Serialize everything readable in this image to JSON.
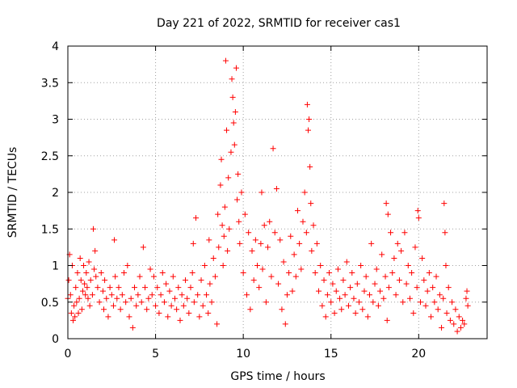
{
  "chart_data": {
    "type": "scatter",
    "title": "Day 221 of 2022, SRMTID for receiver cas1",
    "xlabel": "GPS time / hours",
    "ylabel": "SRMTID / TECUs",
    "xlim": [
      0,
      23.9
    ],
    "ylim": [
      0,
      4
    ],
    "grid": true,
    "marker": "plus",
    "color": "#ff0000",
    "xticks": [
      0,
      5,
      10,
      15,
      20
    ],
    "xtick_labels": [
      "0",
      "5",
      "10",
      "15",
      "20"
    ],
    "yticks": [
      0,
      0.5,
      1,
      1.5,
      2,
      2.5,
      3,
      3.5,
      4
    ],
    "ytick_labels": [
      "0",
      "0.5",
      "1",
      "1.5",
      "2",
      "2.5",
      "3",
      "3.5",
      "4"
    ],
    "series": [
      {
        "name": "SRMTID",
        "points": [
          [
            0.0,
            0.55
          ],
          [
            0.05,
            0.8
          ],
          [
            0.1,
            1.15
          ],
          [
            0.15,
            0.6
          ],
          [
            0.2,
            0.35
          ],
          [
            0.25,
            1.0
          ],
          [
            0.3,
            0.25
          ],
          [
            0.35,
            0.45
          ],
          [
            0.4,
            0.3
          ],
          [
            0.45,
            0.7
          ],
          [
            0.5,
            0.5
          ],
          [
            0.55,
            0.9
          ],
          [
            0.6,
            0.35
          ],
          [
            0.65,
            0.55
          ],
          [
            0.7,
            1.1
          ],
          [
            0.75,
            0.8
          ],
          [
            0.8,
            0.4
          ],
          [
            0.85,
            0.65
          ],
          [
            0.9,
            1.0
          ],
          [
            0.95,
            0.75
          ],
          [
            1.0,
            0.6
          ],
          [
            1.05,
            0.9
          ],
          [
            1.1,
            0.7
          ],
          [
            1.15,
            0.55
          ],
          [
            1.2,
            1.05
          ],
          [
            1.25,
            0.45
          ],
          [
            1.3,
            0.8
          ],
          [
            1.4,
            0.6
          ],
          [
            1.45,
            1.5
          ],
          [
            1.5,
            0.95
          ],
          [
            1.55,
            1.2
          ],
          [
            1.6,
            0.85
          ],
          [
            1.7,
            0.7
          ],
          [
            1.8,
            0.5
          ],
          [
            1.9,
            0.9
          ],
          [
            2.0,
            0.65
          ],
          [
            2.05,
            0.4
          ],
          [
            2.1,
            0.8
          ],
          [
            2.2,
            0.55
          ],
          [
            2.3,
            0.3
          ],
          [
            2.4,
            0.7
          ],
          [
            2.5,
            0.6
          ],
          [
            2.6,
            0.45
          ],
          [
            2.65,
            1.35
          ],
          [
            2.7,
            0.85
          ],
          [
            2.8,
            0.55
          ],
          [
            2.9,
            0.7
          ],
          [
            3.0,
            0.4
          ],
          [
            3.1,
            0.6
          ],
          [
            3.2,
            0.9
          ],
          [
            3.3,
            0.5
          ],
          [
            3.4,
            1.0
          ],
          [
            3.5,
            0.3
          ],
          [
            3.6,
            0.55
          ],
          [
            3.7,
            0.15
          ],
          [
            3.8,
            0.7
          ],
          [
            3.9,
            0.45
          ],
          [
            4.0,
            0.6
          ],
          [
            4.1,
            0.85
          ],
          [
            4.2,
            0.5
          ],
          [
            4.3,
            1.25
          ],
          [
            4.4,
            0.7
          ],
          [
            4.5,
            0.4
          ],
          [
            4.6,
            0.55
          ],
          [
            4.7,
            0.95
          ],
          [
            4.8,
            0.6
          ],
          [
            4.9,
            0.85
          ],
          [
            5.0,
            0.45
          ],
          [
            5.1,
            0.7
          ],
          [
            5.2,
            0.35
          ],
          [
            5.3,
            0.6
          ],
          [
            5.4,
            0.9
          ],
          [
            5.5,
            0.5
          ],
          [
            5.6,
            0.75
          ],
          [
            5.7,
            0.3
          ],
          [
            5.8,
            0.65
          ],
          [
            5.9,
            0.45
          ],
          [
            6.0,
            0.85
          ],
          [
            6.1,
            0.55
          ],
          [
            6.2,
            0.4
          ],
          [
            6.3,
            0.7
          ],
          [
            6.4,
            0.25
          ],
          [
            6.5,
            0.6
          ],
          [
            6.6,
            0.45
          ],
          [
            6.7,
            0.8
          ],
          [
            6.8,
            0.55
          ],
          [
            6.9,
            0.35
          ],
          [
            7.0,
            0.7
          ],
          [
            7.1,
            0.9
          ],
          [
            7.15,
            1.3
          ],
          [
            7.2,
            0.5
          ],
          [
            7.3,
            1.65
          ],
          [
            7.4,
            0.6
          ],
          [
            7.5,
            0.3
          ],
          [
            7.6,
            0.8
          ],
          [
            7.7,
            0.45
          ],
          [
            7.8,
            1.0
          ],
          [
            7.9,
            0.6
          ],
          [
            8.0,
            0.35
          ],
          [
            8.05,
            1.35
          ],
          [
            8.1,
            0.75
          ],
          [
            8.2,
            0.5
          ],
          [
            8.3,
            1.1
          ],
          [
            8.4,
            0.85
          ],
          [
            8.5,
            0.2
          ],
          [
            8.55,
            1.7
          ],
          [
            8.6,
            1.25
          ],
          [
            8.7,
            2.1
          ],
          [
            8.75,
            2.45
          ],
          [
            8.8,
            1.55
          ],
          [
            8.85,
            1.0
          ],
          [
            8.9,
            1.4
          ],
          [
            8.95,
            1.8
          ],
          [
            9.0,
            3.8
          ],
          [
            9.05,
            2.85
          ],
          [
            9.1,
            1.2
          ],
          [
            9.15,
            2.2
          ],
          [
            9.2,
            1.5
          ],
          [
            9.3,
            2.55
          ],
          [
            9.35,
            3.55
          ],
          [
            9.4,
            3.3
          ],
          [
            9.45,
            2.95
          ],
          [
            9.5,
            2.65
          ],
          [
            9.55,
            3.1
          ],
          [
            9.6,
            3.7
          ],
          [
            9.65,
            1.9
          ],
          [
            9.7,
            2.25
          ],
          [
            9.75,
            1.6
          ],
          [
            9.8,
            1.3
          ],
          [
            9.9,
            2.0
          ],
          [
            10.0,
            0.9
          ],
          [
            10.1,
            1.7
          ],
          [
            10.2,
            0.6
          ],
          [
            10.3,
            1.45
          ],
          [
            10.4,
            0.4
          ],
          [
            10.5,
            1.2
          ],
          [
            10.6,
            0.8
          ],
          [
            10.7,
            1.35
          ],
          [
            10.8,
            1.0
          ],
          [
            10.9,
            0.7
          ],
          [
            11.0,
            1.3
          ],
          [
            11.05,
            2.0
          ],
          [
            11.1,
            0.95
          ],
          [
            11.2,
            1.55
          ],
          [
            11.3,
            0.5
          ],
          [
            11.4,
            1.25
          ],
          [
            11.5,
            1.6
          ],
          [
            11.6,
            0.85
          ],
          [
            11.7,
            2.6
          ],
          [
            11.8,
            1.45
          ],
          [
            11.9,
            2.05
          ],
          [
            12.0,
            0.75
          ],
          [
            12.1,
            1.35
          ],
          [
            12.2,
            0.4
          ],
          [
            12.3,
            1.05
          ],
          [
            12.4,
            0.2
          ],
          [
            12.5,
            0.6
          ],
          [
            12.6,
            0.9
          ],
          [
            12.7,
            1.4
          ],
          [
            12.8,
            0.65
          ],
          [
            12.9,
            1.15
          ],
          [
            13.0,
            0.85
          ],
          [
            13.1,
            1.75
          ],
          [
            13.2,
            1.3
          ],
          [
            13.3,
            0.95
          ],
          [
            13.4,
            1.6
          ],
          [
            13.5,
            2.0
          ],
          [
            13.6,
            1.45
          ],
          [
            13.65,
            3.2
          ],
          [
            13.7,
            2.85
          ],
          [
            13.75,
            3.0
          ],
          [
            13.8,
            2.35
          ],
          [
            13.85,
            1.85
          ],
          [
            13.9,
            1.2
          ],
          [
            14.0,
            1.55
          ],
          [
            14.1,
            0.9
          ],
          [
            14.2,
            1.3
          ],
          [
            14.3,
            0.65
          ],
          [
            14.4,
            1.0
          ],
          [
            14.5,
            0.45
          ],
          [
            14.6,
            0.8
          ],
          [
            14.7,
            0.3
          ],
          [
            14.8,
            0.6
          ],
          [
            14.9,
            0.9
          ],
          [
            15.0,
            0.5
          ],
          [
            15.1,
            0.75
          ],
          [
            15.2,
            0.35
          ],
          [
            15.3,
            0.65
          ],
          [
            15.4,
            0.95
          ],
          [
            15.5,
            0.55
          ],
          [
            15.6,
            0.4
          ],
          [
            15.7,
            0.8
          ],
          [
            15.8,
            0.6
          ],
          [
            15.9,
            1.05
          ],
          [
            16.0,
            0.45
          ],
          [
            16.1,
            0.7
          ],
          [
            16.2,
            0.9
          ],
          [
            16.3,
            0.55
          ],
          [
            16.4,
            0.35
          ],
          [
            16.5,
            0.75
          ],
          [
            16.6,
            0.5
          ],
          [
            16.7,
            1.0
          ],
          [
            16.8,
            0.4
          ],
          [
            16.9,
            0.65
          ],
          [
            17.0,
            0.85
          ],
          [
            17.1,
            0.3
          ],
          [
            17.2,
            0.6
          ],
          [
            17.3,
            1.3
          ],
          [
            17.4,
            0.5
          ],
          [
            17.5,
            0.75
          ],
          [
            17.6,
            0.95
          ],
          [
            17.7,
            0.45
          ],
          [
            17.8,
            0.65
          ],
          [
            17.9,
            1.15
          ],
          [
            18.0,
            0.55
          ],
          [
            18.1,
            0.85
          ],
          [
            18.15,
            1.85
          ],
          [
            18.2,
            0.25
          ],
          [
            18.25,
            1.7
          ],
          [
            18.3,
            0.7
          ],
          [
            18.4,
            1.45
          ],
          [
            18.5,
            0.9
          ],
          [
            18.6,
            1.1
          ],
          [
            18.7,
            0.6
          ],
          [
            18.8,
            1.3
          ],
          [
            18.9,
            0.8
          ],
          [
            19.0,
            1.2
          ],
          [
            19.1,
            0.5
          ],
          [
            19.2,
            1.45
          ],
          [
            19.3,
            0.75
          ],
          [
            19.4,
            1.0
          ],
          [
            19.5,
            0.55
          ],
          [
            19.6,
            0.9
          ],
          [
            19.7,
            0.35
          ],
          [
            19.8,
            1.25
          ],
          [
            19.9,
            0.7
          ],
          [
            19.95,
            1.75
          ],
          [
            20.0,
            1.65
          ],
          [
            20.1,
            0.5
          ],
          [
            20.2,
            1.1
          ],
          [
            20.3,
            0.8
          ],
          [
            20.4,
            0.45
          ],
          [
            20.5,
            0.65
          ],
          [
            20.6,
            0.9
          ],
          [
            20.7,
            0.3
          ],
          [
            20.8,
            0.7
          ],
          [
            20.9,
            0.5
          ],
          [
            21.0,
            0.85
          ],
          [
            21.1,
            0.4
          ],
          [
            21.2,
            0.6
          ],
          [
            21.3,
            0.15
          ],
          [
            21.4,
            0.55
          ],
          [
            21.45,
            1.85
          ],
          [
            21.5,
            1.45
          ],
          [
            21.55,
            1.0
          ],
          [
            21.6,
            0.35
          ],
          [
            21.7,
            0.7
          ],
          [
            21.8,
            0.25
          ],
          [
            21.9,
            0.5
          ],
          [
            22.0,
            0.2
          ],
          [
            22.1,
            0.4
          ],
          [
            22.2,
            0.1
          ],
          [
            22.3,
            0.3
          ],
          [
            22.4,
            0.15
          ],
          [
            22.5,
            0.25
          ],
          [
            22.6,
            0.2
          ],
          [
            22.7,
            0.55
          ],
          [
            22.75,
            0.65
          ],
          [
            22.8,
            0.45
          ]
        ]
      }
    ]
  }
}
